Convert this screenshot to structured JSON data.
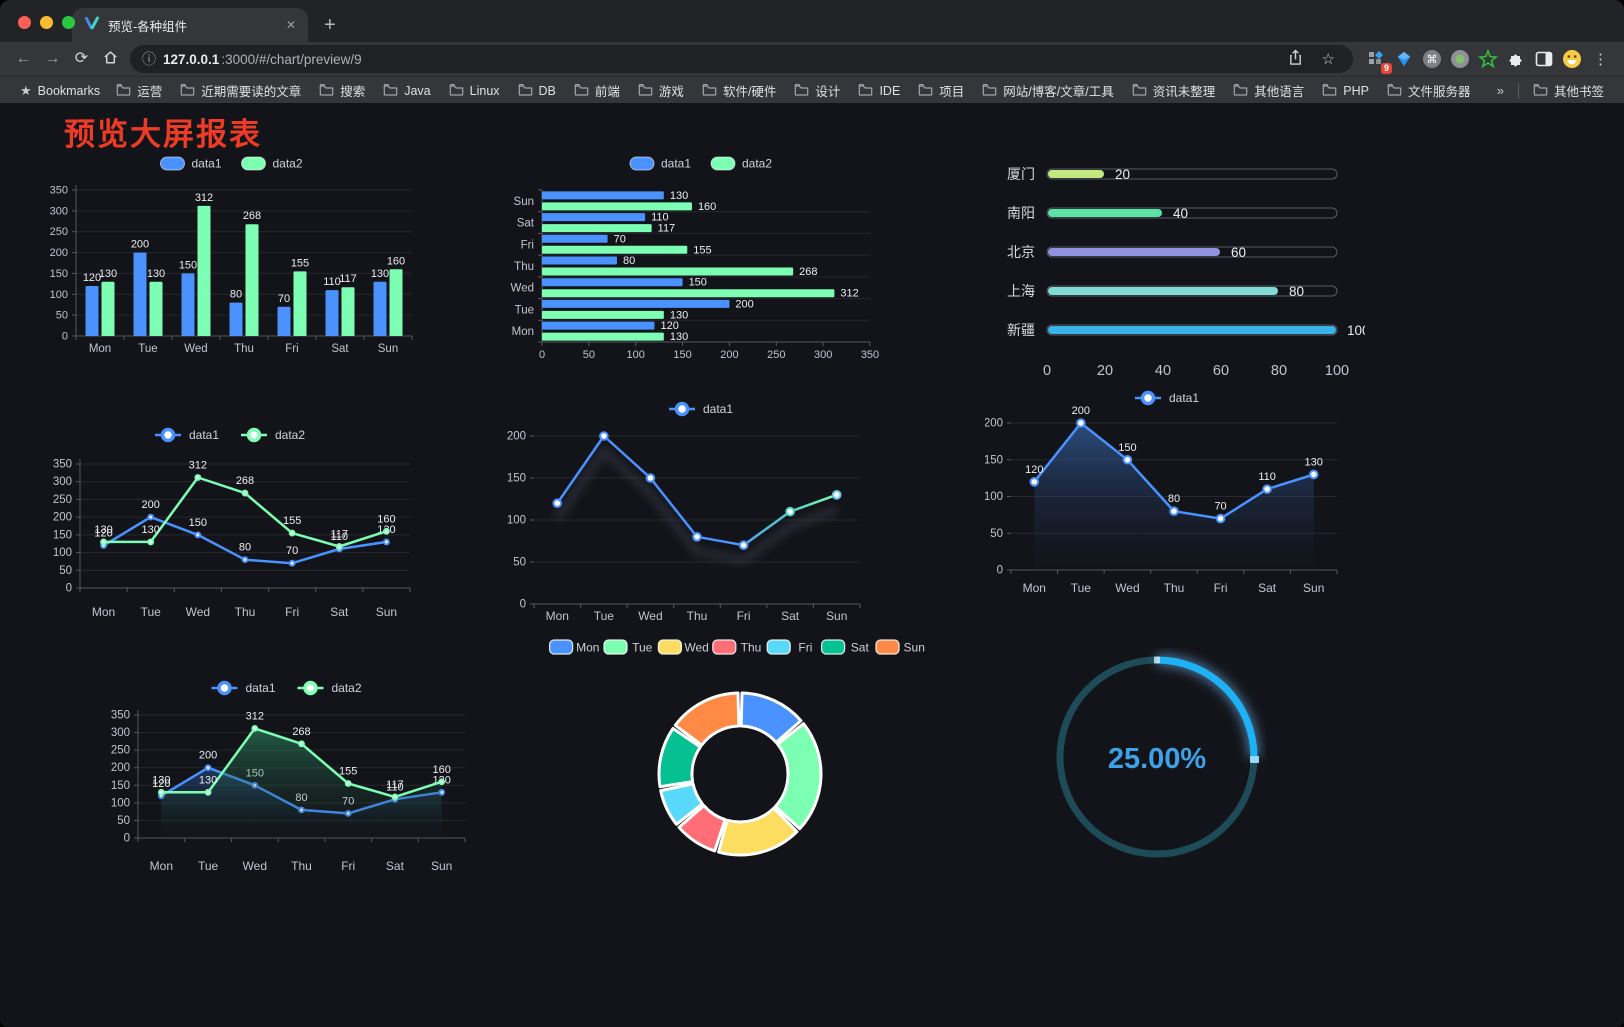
{
  "browser": {
    "tab_title": "预览-各种组件",
    "url_host": "127.0.0.1",
    "url_rest": ":3000/#/chart/preview/9",
    "bookmarks_label": "Bookmarks",
    "bookmarks": [
      "运营",
      "近期需要读的文章",
      "搜索",
      "Java",
      "Linux",
      "DB",
      "前端",
      "游戏",
      "软件/硬件",
      "设计",
      "IDE",
      "项目",
      "网站/博客/文章/工具",
      "资讯未整理",
      "其他语言",
      "PHP",
      "文件服务器"
    ],
    "other_bookmarks": "其他书签",
    "extension_badge": "9",
    "icons": {
      "back": "←",
      "forward": "→",
      "reload": "⟳",
      "info": "ⓘ",
      "star": "☆",
      "plus": "+",
      "close_tab": "✕",
      "kebab": "⋮",
      "chevron": "»",
      "command": "⌘"
    }
  },
  "page": {
    "title": "预览大屏报表",
    "title_color": "#ee3b26"
  },
  "chart_data": [
    {
      "id": "c1",
      "type": "bar",
      "categories": [
        "Mon",
        "Tue",
        "Wed",
        "Thu",
        "Fri",
        "Sat",
        "Sun"
      ],
      "series": [
        {
          "name": "data1",
          "color": "#4992ff",
          "values": [
            120,
            200,
            150,
            80,
            70,
            110,
            130
          ]
        },
        {
          "name": "data2",
          "color": "#7cffb2",
          "values": [
            130,
            130,
            312,
            268,
            155,
            117,
            160
          ]
        }
      ],
      "ylim": [
        0,
        350
      ],
      "ytick": 50,
      "legend_position": "top",
      "grid": true
    },
    {
      "id": "c2",
      "type": "hbar",
      "categories": [
        "Mon",
        "Tue",
        "Wed",
        "Thu",
        "Fri",
        "Sat",
        "Sun"
      ],
      "series": [
        {
          "name": "data1",
          "color": "#4992ff",
          "values": [
            120,
            200,
            150,
            80,
            70,
            110,
            130
          ]
        },
        {
          "name": "data2",
          "color": "#7cffb2",
          "values": [
            130,
            130,
            312,
            268,
            155,
            117,
            160
          ]
        }
      ],
      "xlim": [
        0,
        350
      ],
      "xtick": 50,
      "legend_position": "top",
      "grid": true
    },
    {
      "id": "c3",
      "type": "progress",
      "items": [
        {
          "label": "厦门",
          "value": 20,
          "color": "#c3e87f"
        },
        {
          "label": "南阳",
          "value": 40,
          "color": "#5be3a6"
        },
        {
          "label": "北京",
          "value": 60,
          "color": "#9193de"
        },
        {
          "label": "上海",
          "value": 80,
          "color": "#7fdbd4"
        },
        {
          "label": "新疆",
          "value": 100,
          "color": "#38b3e8"
        }
      ],
      "xlim": [
        0,
        100
      ],
      "xticks": [
        0,
        20,
        40,
        60,
        80,
        100
      ]
    },
    {
      "id": "c4",
      "type": "line",
      "categories": [
        "Mon",
        "Tue",
        "Wed",
        "Thu",
        "Fri",
        "Sat",
        "Sun"
      ],
      "series": [
        {
          "name": "data1",
          "color": "#4992ff",
          "values": [
            120,
            200,
            150,
            80,
            70,
            110,
            130
          ],
          "labels": true
        },
        {
          "name": "data2",
          "color": "#7cffb2",
          "values": [
            130,
            130,
            312,
            268,
            155,
            117,
            160
          ],
          "labels": true
        }
      ],
      "ylim": [
        0,
        350
      ],
      "ytick": 50,
      "legend_position": "top",
      "grid": true
    },
    {
      "id": "c5",
      "type": "line",
      "categories": [
        "Mon",
        "Tue",
        "Wed",
        "Thu",
        "Fri",
        "Sat",
        "Sun"
      ],
      "series": [
        {
          "name": "data1",
          "color": "#4992ff",
          "values": [
            120,
            200,
            150,
            80,
            70,
            110,
            130
          ],
          "marker": "hollow",
          "shadow": true,
          "gradient": [
            [
              0,
              "#4992ff"
            ],
            [
              0.6,
              "#4992ff"
            ],
            [
              0.85,
              "#52d4c4"
            ],
            [
              1,
              "#7cffb2"
            ]
          ],
          "ring_colors": [
            "#4992ff",
            "#4992ff",
            "#4992ff",
            "#4992ff",
            "#4992ff",
            "#4fd6c0",
            "#63c8e8"
          ]
        }
      ],
      "ylim": [
        0,
        200
      ],
      "ytick": 50,
      "legend_position": "top",
      "grid": true
    },
    {
      "id": "c6",
      "type": "line",
      "categories": [
        "Mon",
        "Tue",
        "Wed",
        "Thu",
        "Fri",
        "Sat",
        "Sun"
      ],
      "series": [
        {
          "name": "data1",
          "color": "#4992ff",
          "values": [
            120,
            200,
            150,
            80,
            70,
            110,
            130
          ],
          "marker": "hollow",
          "labels": true,
          "area": [
            "rgba(60,115,195,0.6)",
            "rgba(24,34,58,0.05)"
          ]
        }
      ],
      "ylim": [
        0,
        200
      ],
      "ytick": 50,
      "legend_position": "top",
      "grid": true
    },
    {
      "id": "c7",
      "type": "line",
      "categories": [
        "Mon",
        "Tue",
        "Wed",
        "Thu",
        "Fri",
        "Sat",
        "Sun"
      ],
      "series": [
        {
          "name": "data1",
          "color": "#4992ff",
          "values": [
            120,
            200,
            150,
            80,
            70,
            110,
            130
          ],
          "labels": true,
          "area": [
            "rgba(45,95,165,0.5)",
            "rgba(21,31,52,0.04)"
          ]
        },
        {
          "name": "data2",
          "color": "#7cffb2",
          "values": [
            130,
            130,
            312,
            268,
            155,
            117,
            160
          ],
          "labels": true,
          "area": [
            "rgba(50,150,108,0.55)",
            "rgba(20,40,33,0.04)"
          ]
        }
      ],
      "ylim": [
        0,
        350
      ],
      "ytick": 50,
      "legend_position": "top",
      "grid": true
    },
    {
      "id": "c8",
      "type": "donut",
      "items": [
        {
          "name": "Mon",
          "value": 120,
          "color": "#4992ff"
        },
        {
          "name": "Tue",
          "value": 200,
          "color": "#7cffb2"
        },
        {
          "name": "Wed",
          "value": 150,
          "color": "#fddd60"
        },
        {
          "name": "Thu",
          "value": 80,
          "color": "#ff6e76"
        },
        {
          "name": "Fri",
          "value": 70,
          "color": "#58d9f9"
        },
        {
          "name": "Sat",
          "value": 110,
          "color": "#05c091"
        },
        {
          "name": "Sun",
          "value": 130,
          "color": "#ff8a45"
        }
      ],
      "legend_position": "top"
    },
    {
      "id": "c9",
      "type": "gauge",
      "value": 25,
      "display": "25.00%",
      "color": "#1db2f5",
      "track_color": "#1d4b58",
      "text_color": "#3ba3e8"
    }
  ]
}
